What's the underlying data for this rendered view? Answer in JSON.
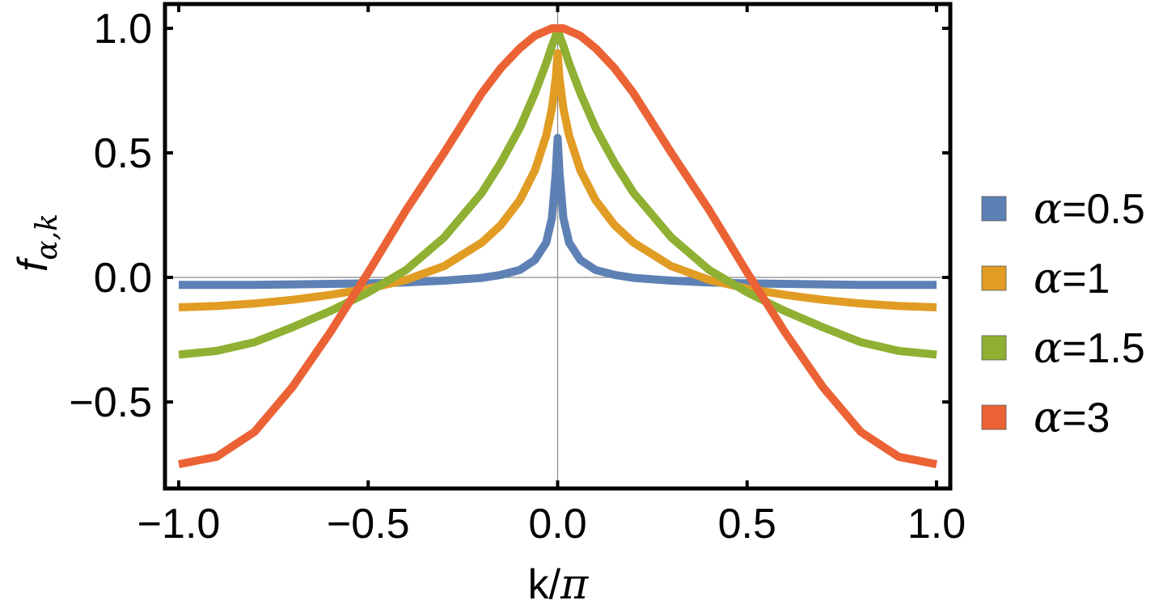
{
  "chart_data": {
    "type": "line",
    "title": "",
    "xlabel": "k/π",
    "ylabel": "f_α,k",
    "ylabel_parts": {
      "base": "f",
      "sub": "α,k"
    },
    "xlim": [
      -1.0,
      1.0
    ],
    "ylim": [
      -0.83,
      1.09
    ],
    "x_ticks": [
      -1.0,
      -0.5,
      0.0,
      0.5,
      1.0
    ],
    "x_tick_labels": [
      "−1.0",
      "−0.5",
      "0.0",
      "0.5",
      "1.0"
    ],
    "y_ticks": [
      -0.5,
      0.0,
      0.5,
      1.0
    ],
    "y_tick_labels": [
      "−0.5",
      "0.0",
      "0.5",
      "1.0"
    ],
    "grid": false,
    "legend_position": "right",
    "x": [
      -1.0,
      -0.9,
      -0.8,
      -0.7,
      -0.6,
      -0.5,
      -0.4,
      -0.3,
      -0.2,
      -0.15,
      -0.1,
      -0.06,
      -0.03,
      -0.015,
      -0.005,
      0.0,
      0.005,
      0.015,
      0.03,
      0.06,
      0.1,
      0.15,
      0.2,
      0.3,
      0.4,
      0.5,
      0.6,
      0.7,
      0.8,
      0.9,
      1.0
    ],
    "series": [
      {
        "name": "α=0.5",
        "color": "#5e81b5",
        "values": [
          -0.03,
          -0.03,
          -0.03,
          -0.028,
          -0.026,
          -0.024,
          -0.02,
          -0.013,
          -0.002,
          0.01,
          0.03,
          0.07,
          0.14,
          0.24,
          0.42,
          0.56,
          0.42,
          0.24,
          0.14,
          0.07,
          0.03,
          0.01,
          -0.002,
          -0.013,
          -0.02,
          -0.024,
          -0.026,
          -0.028,
          -0.03,
          -0.03,
          -0.03
        ]
      },
      {
        "name": "α=1",
        "color": "#e19c24",
        "values": [
          -0.12,
          -0.115,
          -0.105,
          -0.09,
          -0.07,
          -0.045,
          -0.01,
          0.045,
          0.14,
          0.21,
          0.31,
          0.43,
          0.57,
          0.68,
          0.8,
          0.9,
          0.8,
          0.68,
          0.57,
          0.43,
          0.31,
          0.21,
          0.14,
          0.045,
          -0.01,
          -0.045,
          -0.07,
          -0.09,
          -0.105,
          -0.115,
          -0.12
        ]
      },
      {
        "name": "α=1.5",
        "color": "#8fb032",
        "values": [
          -0.31,
          -0.295,
          -0.26,
          -0.2,
          -0.135,
          -0.06,
          0.03,
          0.16,
          0.34,
          0.46,
          0.6,
          0.74,
          0.86,
          0.93,
          0.97,
          1.0,
          0.97,
          0.93,
          0.86,
          0.74,
          0.6,
          0.46,
          0.34,
          0.16,
          0.03,
          -0.06,
          -0.135,
          -0.2,
          -0.26,
          -0.295,
          -0.31
        ]
      },
      {
        "name": "α=3",
        "color": "#eb6235",
        "values": [
          -0.75,
          -0.72,
          -0.62,
          -0.44,
          -0.22,
          0.02,
          0.27,
          0.5,
          0.74,
          0.84,
          0.92,
          0.97,
          0.99,
          1.0,
          1.0,
          1.0,
          1.0,
          1.0,
          0.99,
          0.97,
          0.92,
          0.84,
          0.74,
          0.5,
          0.27,
          0.02,
          -0.22,
          -0.44,
          -0.62,
          -0.72,
          -0.75
        ]
      }
    ]
  }
}
